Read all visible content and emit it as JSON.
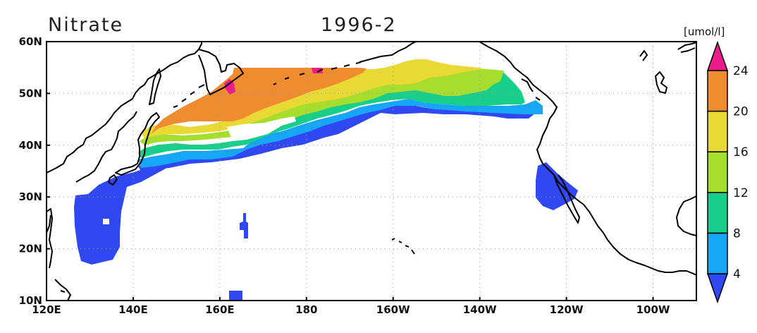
{
  "title_left": "Nitrate",
  "title_right": "1996-2",
  "units": "[umol/l]",
  "lon_labels": [
    "120E",
    "140E",
    "160E",
    "180",
    "160W",
    "140W",
    "120W",
    "100W"
  ],
  "lat_labels": [
    "10N",
    "20N",
    "30N",
    "40N",
    "50N",
    "60N"
  ],
  "lon_values": [
    120,
    140,
    160,
    180,
    200,
    220,
    240,
    260
  ],
  "lat_values": [
    10,
    20,
    30,
    40,
    50,
    60
  ],
  "extent": {
    "lon": [
      120,
      270
    ],
    "lat": [
      10,
      60
    ]
  },
  "colorbar": {
    "levels": [
      4,
      8,
      12,
      16,
      20,
      24
    ],
    "labels": [
      "4",
      "8",
      "12",
      "16",
      "20",
      "24"
    ],
    "colors": [
      "#2f48f2",
      "#16a6f5",
      "#17cf8a",
      "#a6dd2e",
      "#e8d935",
      "#f08c30",
      "#ea1c8c"
    ],
    "extends": "both"
  },
  "map_data": {
    "variable": "Nitrate",
    "period": "1996-2",
    "gridlines": "dotted",
    "regions": [
      {
        "class": "24-28",
        "color": "#ea1c8c",
        "polygon": [
          [
            161,
            52.7
          ],
          [
            163,
            53
          ],
          [
            163,
            51
          ],
          [
            161,
            51
          ]
        ]
      },
      {
        "class": "24-28",
        "color": "#ea1c8c",
        "polygon": [
          [
            177,
            54.5
          ],
          [
            179,
            54.5
          ],
          [
            179,
            53.5
          ],
          [
            177,
            53.5
          ]
        ]
      }
    ]
  }
}
